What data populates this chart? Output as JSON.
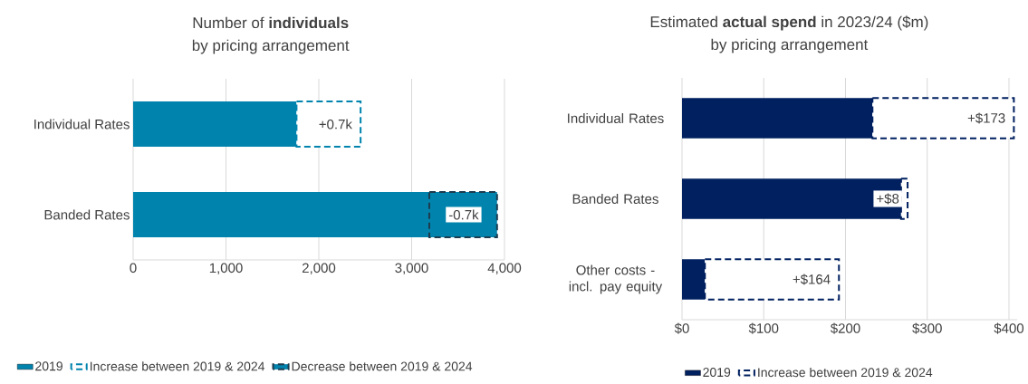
{
  "chart_data": [
    {
      "type": "bar",
      "orientation": "horizontal",
      "stacked": true,
      "title": "Number of **individuals**",
      "subtitle": "by pricing arrangement",
      "categories": [
        "Individual Rates",
        "Banded Rates"
      ],
      "series": [
        {
          "name": "2019",
          "color": "#0083ad",
          "values": [
            1760,
            3190
          ]
        },
        {
          "name": "Increase between 2019 & 2024",
          "color": "#0083ad",
          "values": [
            690,
            null
          ],
          "value_labels": [
            "+0.7k",
            null
          ]
        },
        {
          "name": "Decrease between 2019 & 2024",
          "color": "#1d3c4f",
          "values": [
            null,
            730
          ]
        }
      ],
      "annotations": [
        {
          "text": "-0.7k",
          "x": 3560,
          "y": "Banded Rates"
        }
      ],
      "xlim": [
        0,
        4000
      ],
      "xticks": [
        0,
        {
          "value": 1000,
          "label": "1,000"
        },
        {
          "value": 2000,
          "label": "2,000"
        },
        {
          "value": 3000,
          "label": "3,000"
        },
        {
          "value": 4000,
          "label": "4,000"
        }
      ],
      "grid": "x",
      "legend": "bottom"
    },
    {
      "type": "bar",
      "orientation": "horizontal",
      "stacked": true,
      "title": "Estimated **actual spend** in 2023/24 ($m)",
      "subtitle": "by pricing arrangement",
      "categories": [
        "Individual Rates",
        "Banded Rates",
        "Other costs - incl. pay equity"
      ],
      "series": [
        {
          "name": "2019",
          "color": "#002060",
          "values": [
            233,
            268,
            28
          ]
        },
        {
          "name": "Increase between 2019 & 2024",
          "color": "#002060",
          "values": [
            173,
            8,
            164
          ],
          "value_labels": [
            "+$173",
            "+$8",
            "+$164"
          ]
        }
      ],
      "xlim": [
        0,
        410
      ],
      "xticks": [
        {
          "value": 0,
          "label": "$0"
        },
        {
          "value": 100,
          "label": "$100"
        },
        {
          "value": 200,
          "label": "$200"
        },
        {
          "value": 300,
          "label": "$300"
        },
        {
          "value": 400,
          "label": "$400"
        }
      ],
      "grid": "x",
      "legend": "bottom"
    }
  ]
}
